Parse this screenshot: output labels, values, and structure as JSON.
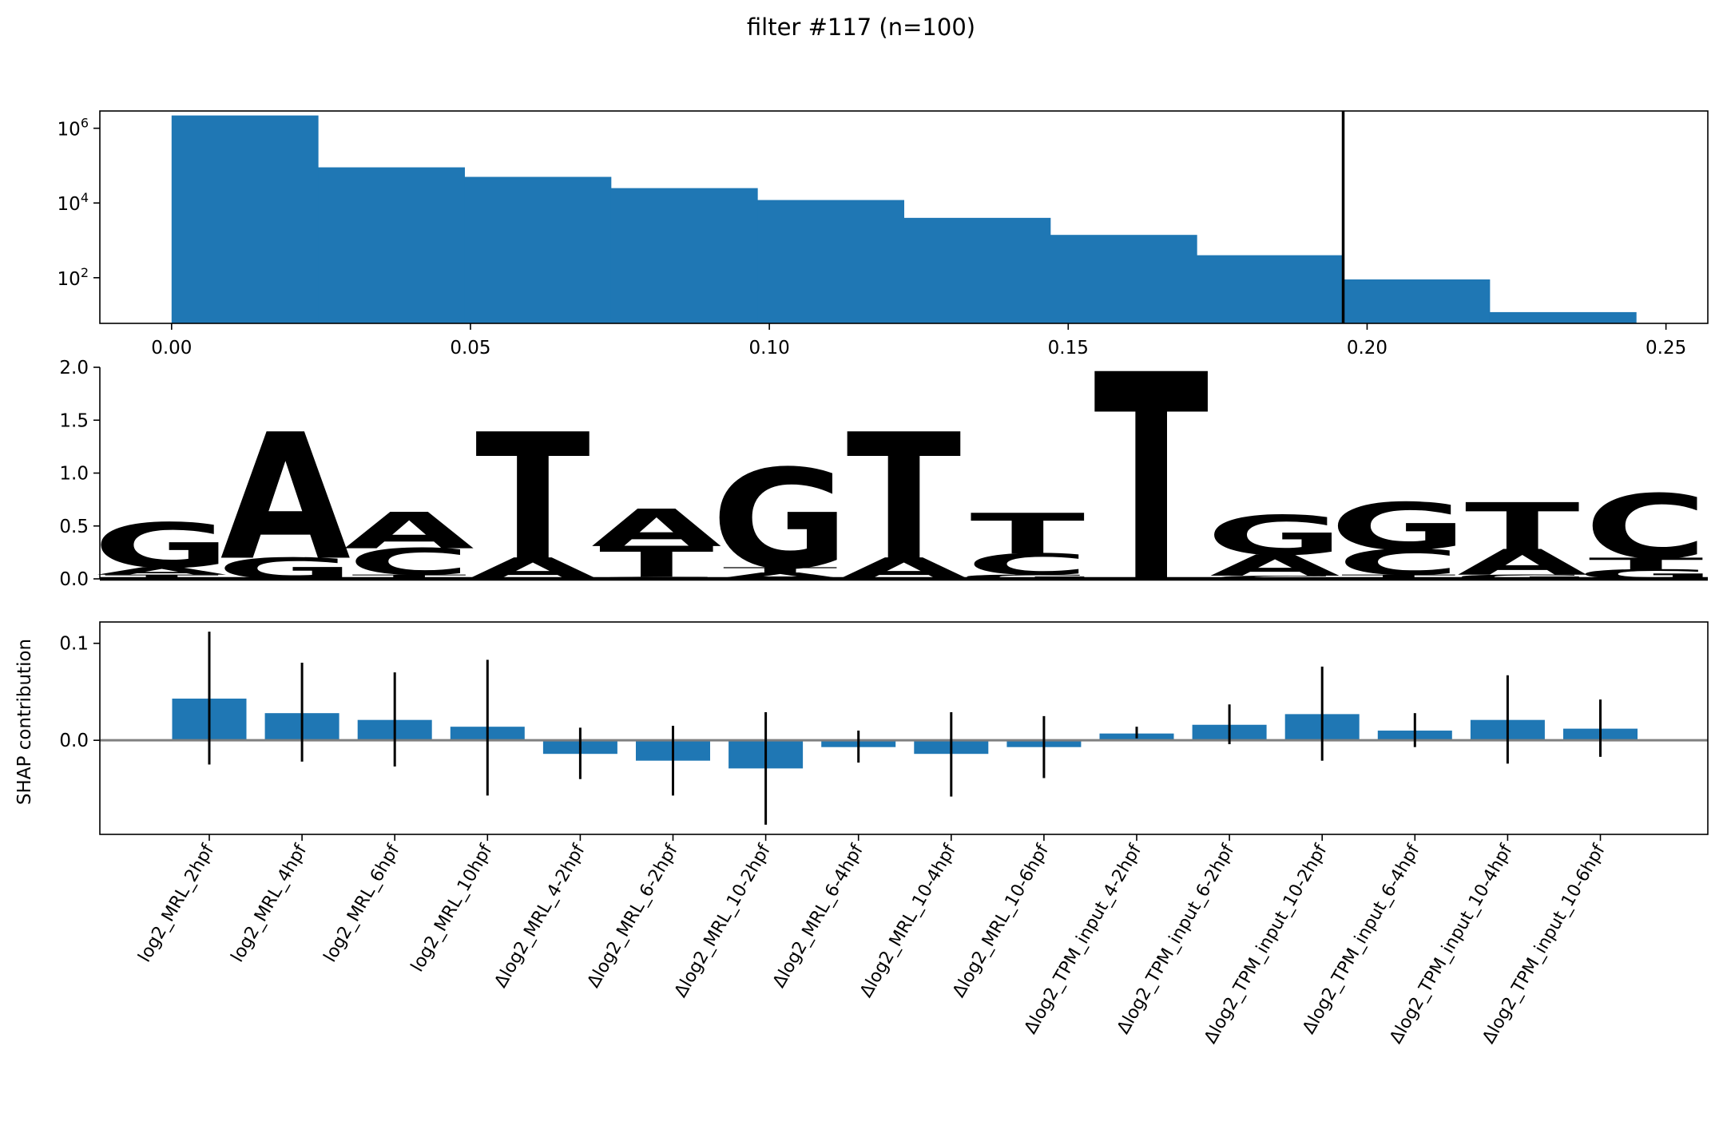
{
  "figure": {
    "title": "filter #117 (n=100)"
  },
  "colors": {
    "bar": "#1f77b4",
    "axis": "#000000",
    "zero_line": "#808080",
    "A": "#109648",
    "C": "#253993",
    "G": "#f7b32b",
    "T": "#e3263b"
  },
  "chart_data": [
    {
      "type": "bar",
      "subtype": "histogram",
      "y_scale": "log",
      "bin_edges": [
        0.0,
        0.0245,
        0.049,
        0.0735,
        0.098,
        0.1225,
        0.147,
        0.1715,
        0.196,
        0.2205,
        0.245
      ],
      "counts": [
        2200000,
        90000,
        50000,
        25000,
        12000,
        4000,
        1400,
        400,
        90,
        12
      ],
      "threshold_line_x": 0.196,
      "xlim": [
        -0.012,
        0.257
      ],
      "ylim": [
        6,
        2900000
      ],
      "x_ticks": [
        0.0,
        0.05,
        0.1,
        0.15,
        0.2,
        0.25
      ],
      "x_tick_labels": [
        "0.00",
        "0.05",
        "0.10",
        "0.15",
        "0.20",
        "0.25"
      ],
      "y_ticks": [
        {
          "value": 100,
          "base": "10",
          "exp": "2"
        },
        {
          "value": 10000,
          "base": "10",
          "exp": "4"
        },
        {
          "value": 1000000,
          "base": "10",
          "exp": "6"
        }
      ]
    },
    {
      "type": "sequence_logo",
      "ylim": [
        0,
        2.0
      ],
      "y_ticks": [
        0.0,
        0.5,
        1.0,
        1.5,
        2.0
      ],
      "y_tick_labels": [
        "0.0",
        "0.5",
        "1.0",
        "1.5",
        "2.0"
      ],
      "positions": [
        [
          {
            "base": "T",
            "h": 0.04
          },
          {
            "base": "A",
            "h": 0.07
          },
          {
            "base": "G",
            "h": 0.42
          }
        ],
        [
          {
            "base": "G",
            "h": 0.2
          },
          {
            "base": "A",
            "h": 1.18
          }
        ],
        [
          {
            "base": "T",
            "h": 0.04
          },
          {
            "base": "C",
            "h": 0.25
          },
          {
            "base": "A",
            "h": 0.34
          }
        ],
        [
          {
            "base": "A",
            "h": 0.2
          },
          {
            "base": "T",
            "h": 1.18
          }
        ],
        [
          {
            "base": "C",
            "h": 0.02
          },
          {
            "base": "T",
            "h": 0.29
          },
          {
            "base": "A",
            "h": 0.35
          }
        ],
        [
          {
            "base": "A",
            "h": 0.06
          },
          {
            "base": "T",
            "h": 0.05
          },
          {
            "base": "G",
            "h": 0.93
          }
        ],
        [
          {
            "base": "A",
            "h": 0.2
          },
          {
            "base": "T",
            "h": 1.18
          }
        ],
        [
          {
            "base": "G",
            "h": 0.04
          },
          {
            "base": "C",
            "h": 0.2
          },
          {
            "base": "T",
            "h": 0.38
          }
        ],
        [
          {
            "base": "T",
            "h": 1.94
          }
        ],
        [
          {
            "base": "C",
            "h": 0.03
          },
          {
            "base": "A",
            "h": 0.2
          },
          {
            "base": "G",
            "h": 0.37
          }
        ],
        [
          {
            "base": "T",
            "h": 0.04
          },
          {
            "base": "C",
            "h": 0.24
          },
          {
            "base": "G",
            "h": 0.44
          }
        ],
        [
          {
            "base": "G",
            "h": 0.04
          },
          {
            "base": "A",
            "h": 0.24
          },
          {
            "base": "T",
            "h": 0.44
          }
        ],
        [
          {
            "base": "G",
            "h": 0.09
          },
          {
            "base": "T",
            "h": 0.11
          },
          {
            "base": "C",
            "h": 0.6
          }
        ]
      ]
    },
    {
      "type": "bar",
      "ylabel": "SHAP contribution",
      "ylim": [
        -0.097,
        0.122
      ],
      "y_ticks": [
        0.0,
        0.1
      ],
      "y_tick_labels": [
        "0.0",
        "0.1"
      ],
      "categories": [
        "log2_MRL_2hpf",
        "log2_MRL_4hpf",
        "log2_MRL_6hpf",
        "log2_MRL_10hpf",
        "Δlog2_MRL_4-2hpf",
        "Δlog2_MRL_6-2hpf",
        "Δlog2_MRL_10-2hpf",
        "Δlog2_MRL_6-4hpf",
        "Δlog2_MRL_10-4hpf",
        "Δlog2_MRL_10-6hpf",
        "Δlog2_TPM_input_4-2hpf",
        "Δlog2_TPM_input_6-2hpf",
        "Δlog2_TPM_input_10-2hpf",
        "Δlog2_TPM_input_6-4hpf",
        "Δlog2_TPM_input_10-4hpf",
        "Δlog2_TPM_input_10-6hpf"
      ],
      "values": [
        0.043,
        0.028,
        0.021,
        0.014,
        -0.014,
        -0.021,
        -0.029,
        -0.007,
        -0.014,
        -0.007,
        0.007,
        0.016,
        0.027,
        0.01,
        0.021,
        0.012
      ],
      "error_low": [
        -0.025,
        -0.022,
        -0.027,
        -0.057,
        -0.04,
        -0.057,
        -0.087,
        -0.023,
        -0.058,
        -0.039,
        0.002,
        -0.004,
        -0.021,
        -0.007,
        -0.024,
        -0.017
      ],
      "error_high": [
        0.112,
        0.08,
        0.07,
        0.083,
        0.013,
        0.015,
        0.029,
        0.01,
        0.029,
        0.025,
        0.014,
        0.037,
        0.076,
        0.028,
        0.067,
        0.042
      ]
    }
  ]
}
